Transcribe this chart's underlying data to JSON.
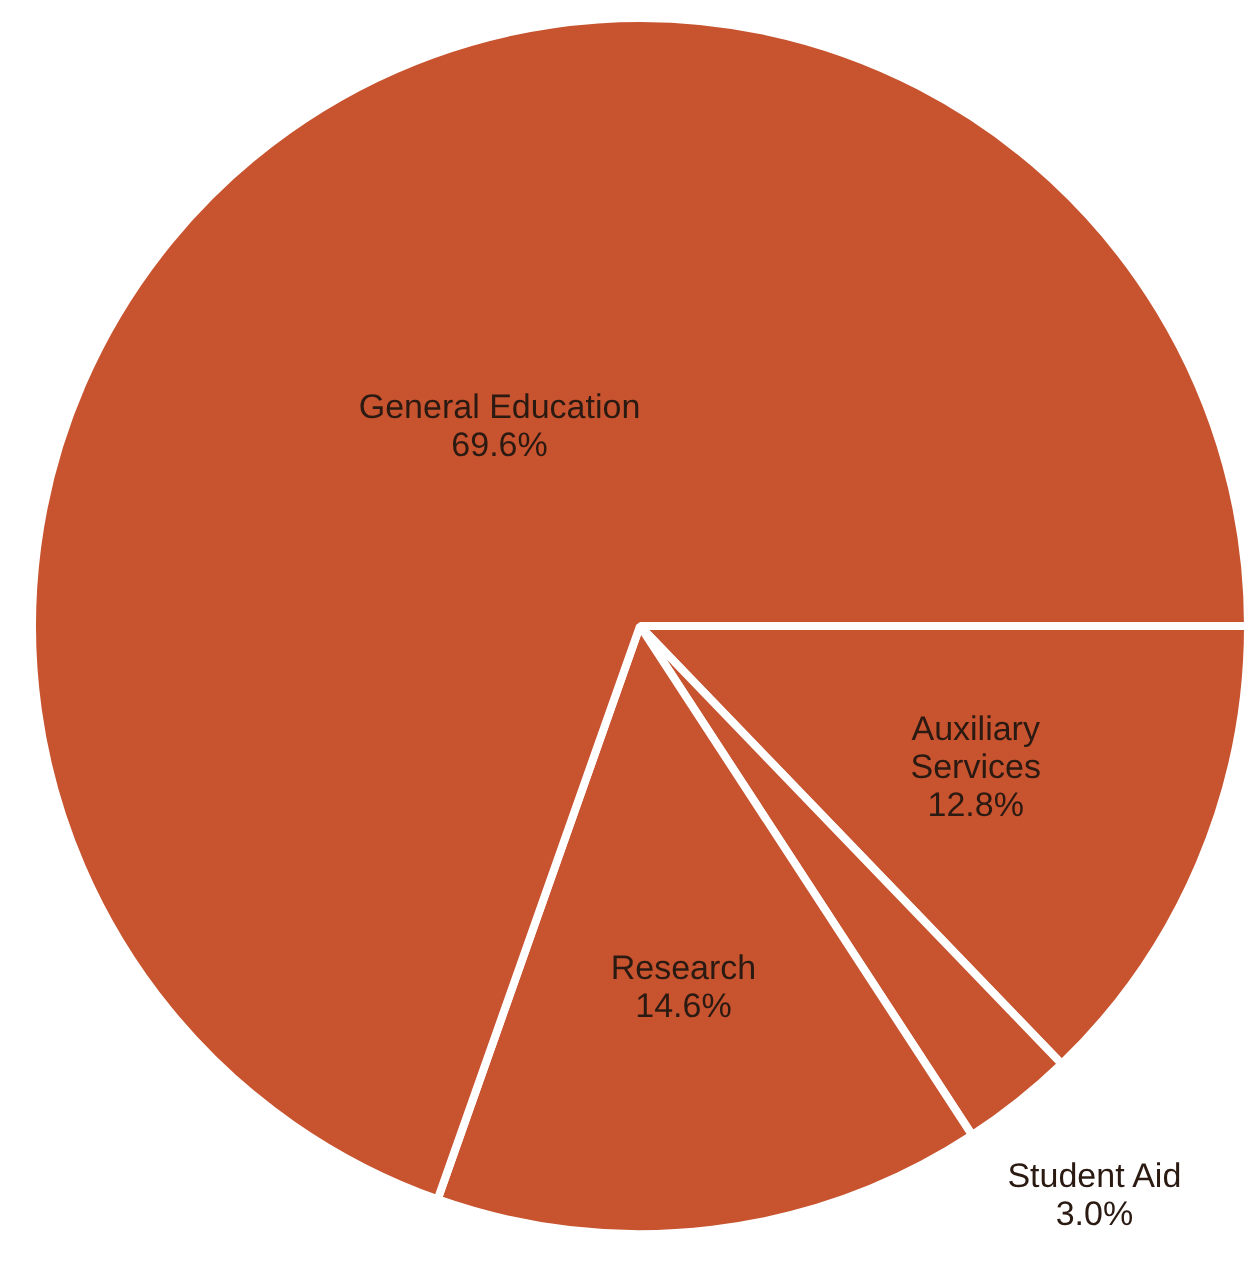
{
  "chart_data": {
    "type": "pie",
    "categories": [
      "Auxiliary Services",
      "Student Aid",
      "Research",
      "General Education"
    ],
    "values": [
      12.8,
      3.0,
      14.6,
      69.6
    ],
    "value_labels": [
      "12.8%",
      "3.0%",
      "14.6%",
      "69.6%"
    ],
    "colors": [
      "#c8532f",
      "#c8532f",
      "#c8532f",
      "#c8532f"
    ],
    "legend": false
  }
}
